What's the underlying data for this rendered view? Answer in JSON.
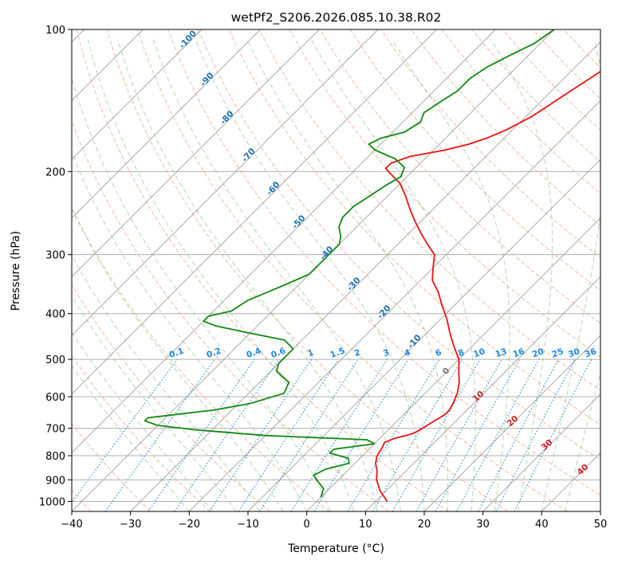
{
  "chart_data": {
    "type": "line",
    "subtype": "skew-t log-p diagram",
    "title": "wetPf2_S206.2026.085.10.38.R02",
    "xlabel": "Temperature (°C)",
    "ylabel": "Pressure (hPa)",
    "xlim": [
      -40,
      50
    ],
    "ylim": [
      1050,
      100
    ],
    "y_scale": "log",
    "x_ticks": [
      "−40",
      "−30",
      "−20",
      "−10",
      "0",
      "10",
      "20",
      "30",
      "40",
      "50"
    ],
    "y_ticks": [
      "100",
      "200",
      "300",
      "400",
      "500",
      "600",
      "700",
      "800",
      "900",
      "1000"
    ],
    "grid": true,
    "colors": {
      "temperature": "#ee1111",
      "dewpoint": "#118811",
      "isotherm": "#a0a0a0",
      "dry_adiabat": "#f4a080",
      "moist_adiabat": "#7fc07f",
      "mixing_ratio": "#1e88e5",
      "wetbulb_label": "#1f6fb0",
      "red_label": "#cc2222"
    },
    "series": [
      {
        "key": "temperature",
        "points": [
          [
            12,
            1000
          ],
          [
            9,
            950
          ],
          [
            6.5,
            900
          ],
          [
            5,
            860
          ],
          [
            3.5,
            830
          ],
          [
            2.5,
            800
          ],
          [
            2,
            770
          ],
          [
            1.5,
            750
          ],
          [
            2.5,
            735
          ],
          [
            4,
            725
          ],
          [
            5,
            715
          ],
          [
            5.5,
            700
          ],
          [
            6,
            685
          ],
          [
            6.5,
            670
          ],
          [
            7,
            655
          ],
          [
            7,
            640
          ],
          [
            6.5,
            620
          ],
          [
            5.5,
            590
          ],
          [
            4,
            560
          ],
          [
            2,
            530
          ],
          [
            0,
            500
          ],
          [
            -3,
            470
          ],
          [
            -6,
            440
          ],
          [
            -9,
            410
          ],
          [
            -12,
            385
          ],
          [
            -15,
            360
          ],
          [
            -18,
            340
          ],
          [
            -20,
            320
          ],
          [
            -22,
            300
          ],
          [
            -25,
            285
          ],
          [
            -28,
            270
          ],
          [
            -31,
            255
          ],
          [
            -34,
            240
          ],
          [
            -37,
            225
          ],
          [
            -40,
            212
          ],
          [
            -43,
            203
          ],
          [
            -45,
            197
          ],
          [
            -45,
            192
          ],
          [
            -43,
            186
          ],
          [
            -38,
            180
          ],
          [
            -35,
            175
          ],
          [
            -33,
            170
          ],
          [
            -31,
            163
          ],
          [
            -29,
            153
          ],
          [
            -28,
            145
          ],
          [
            -27,
            137
          ],
          [
            -26,
            130
          ],
          [
            -25,
            123
          ],
          [
            -24,
            116
          ],
          [
            -24,
            110
          ],
          [
            -24.5,
            105
          ],
          [
            -25,
            100
          ]
        ]
      },
      {
        "key": "dewpoint",
        "points": [
          [
            0,
            980
          ],
          [
            -1,
            940
          ],
          [
            -3,
            910
          ],
          [
            -5,
            880
          ],
          [
            -4,
            855
          ],
          [
            -1,
            830
          ],
          [
            -2,
            810
          ],
          [
            -6,
            790
          ],
          [
            -6,
            775
          ],
          [
            -3,
            765
          ],
          [
            0,
            755
          ],
          [
            -2,
            740
          ],
          [
            -20,
            725
          ],
          [
            -33,
            705
          ],
          [
            -40,
            690
          ],
          [
            -43,
            675
          ],
          [
            -43,
            665
          ],
          [
            -39,
            655
          ],
          [
            -33,
            640
          ],
          [
            -28,
            620
          ],
          [
            -24,
            590
          ],
          [
            -25,
            560
          ],
          [
            -29,
            530
          ],
          [
            -30,
            510
          ],
          [
            -30,
            495
          ],
          [
            -30,
            475
          ],
          [
            -33,
            455
          ],
          [
            -40,
            440
          ],
          [
            -47,
            425
          ],
          [
            -50,
            415
          ],
          [
            -50,
            405
          ],
          [
            -47,
            395
          ],
          [
            -46,
            375
          ],
          [
            -44,
            360
          ],
          [
            -42,
            345
          ],
          [
            -40,
            330
          ],
          [
            -40,
            310
          ],
          [
            -40,
            295
          ],
          [
            -40,
            285
          ],
          [
            -41,
            275
          ],
          [
            -43,
            262
          ],
          [
            -44,
            250
          ],
          [
            -44,
            237
          ],
          [
            -43,
            225
          ],
          [
            -42,
            213
          ],
          [
            -41,
            205
          ],
          [
            -42,
            196
          ],
          [
            -45,
            188
          ],
          [
            -50,
            180
          ],
          [
            -52,
            175
          ],
          [
            -51,
            170
          ],
          [
            -48,
            165
          ],
          [
            -47,
            157
          ],
          [
            -48,
            150
          ],
          [
            -47,
            142
          ],
          [
            -46,
            135
          ],
          [
            -46,
            127
          ],
          [
            -45,
            120
          ],
          [
            -43,
            113
          ],
          [
            -41,
            107
          ],
          [
            -40,
            100
          ]
        ]
      }
    ],
    "wetbulb_labels": [
      "-100",
      "-90",
      "-80",
      "-70",
      "-60",
      "-50",
      "-40",
      "-30",
      "-20",
      "-10"
    ],
    "wetbulb_zero_label": "0",
    "dry_adiabat_labels": [
      "10",
      "20",
      "30",
      "40"
    ],
    "mixing_ratio_labels": [
      "0.1",
      "0.2",
      "0.4",
      "0.6",
      "1",
      "1.5",
      "2",
      "3",
      "4",
      "6",
      "8",
      "10",
      "13",
      "16",
      "20",
      "25",
      "30",
      "36"
    ]
  }
}
